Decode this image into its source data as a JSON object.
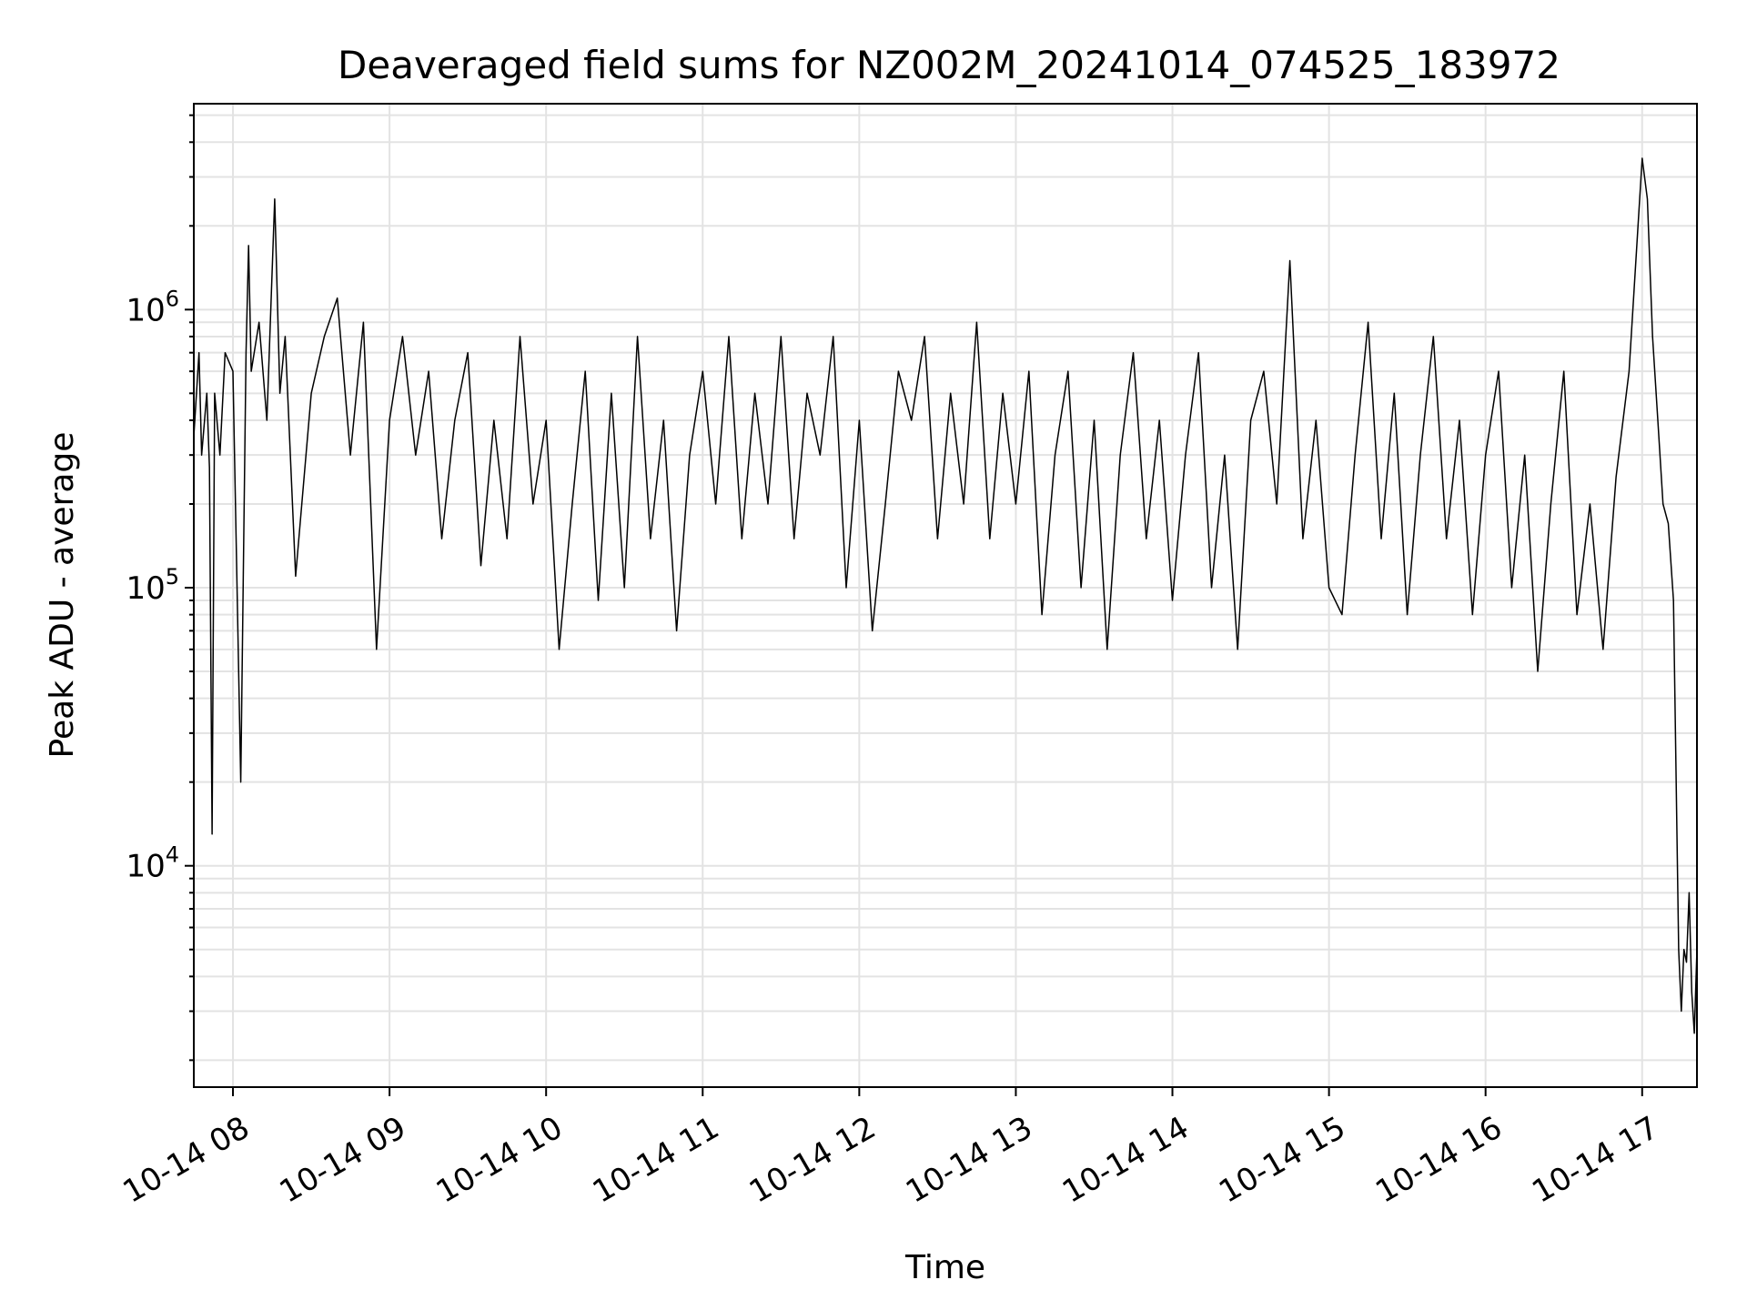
{
  "chart_data": {
    "type": "line",
    "title": "Deaveraged field sums for NZ002M_20241014_074525_183972",
    "xlabel": "Time",
    "ylabel": "Peak ADU - average",
    "yscale": "log",
    "ylim": [
      1600,
      5500000
    ],
    "xlim": [
      "2024-10-14 07:45",
      "2024-10-14 17:21"
    ],
    "grid": true,
    "line_color": "#000000",
    "x_ticks": [
      "10-14 08",
      "10-14 09",
      "10-14 10",
      "10-14 11",
      "10-14 12",
      "10-14 13",
      "10-14 14",
      "10-14 15",
      "10-14 16",
      "10-14 17"
    ],
    "y_ticks": [
      {
        "base": "10",
        "exp": "4",
        "value": 10000
      },
      {
        "base": "10",
        "exp": "5",
        "value": 100000
      },
      {
        "base": "10",
        "exp": "6",
        "value": 1000000
      }
    ],
    "series": [
      {
        "x": [
          "2024-10-14 07:45",
          "2024-10-14 07:47",
          "2024-10-14 07:48",
          "2024-10-14 07:50",
          "2024-10-14 07:51",
          "2024-10-14 07:52",
          "2024-10-14 07:53",
          "2024-10-14 07:55",
          "2024-10-14 07:57",
          "2024-10-14 08:00",
          "2024-10-14 08:03",
          "2024-10-14 08:05",
          "2024-10-14 08:06",
          "2024-10-14 08:07",
          "2024-10-14 08:10",
          "2024-10-14 08:13",
          "2024-10-14 08:16",
          "2024-10-14 08:18",
          "2024-10-14 08:20",
          "2024-10-14 08:24",
          "2024-10-14 08:30",
          "2024-10-14 08:35",
          "2024-10-14 08:40",
          "2024-10-14 08:45",
          "2024-10-14 08:50",
          "2024-10-14 08:55",
          "2024-10-14 09:00",
          "2024-10-14 09:05",
          "2024-10-14 09:10",
          "2024-10-14 09:15",
          "2024-10-14 09:20",
          "2024-10-14 09:25",
          "2024-10-14 09:30",
          "2024-10-14 09:35",
          "2024-10-14 09:40",
          "2024-10-14 09:45",
          "2024-10-14 09:50",
          "2024-10-14 09:55",
          "2024-10-14 10:00",
          "2024-10-14 10:05",
          "2024-10-14 10:10",
          "2024-10-14 10:15",
          "2024-10-14 10:20",
          "2024-10-14 10:25",
          "2024-10-14 10:30",
          "2024-10-14 10:35",
          "2024-10-14 10:40",
          "2024-10-14 10:45",
          "2024-10-14 10:50",
          "2024-10-14 10:55",
          "2024-10-14 11:00",
          "2024-10-14 11:05",
          "2024-10-14 11:10",
          "2024-10-14 11:15",
          "2024-10-14 11:20",
          "2024-10-14 11:25",
          "2024-10-14 11:30",
          "2024-10-14 11:35",
          "2024-10-14 11:40",
          "2024-10-14 11:45",
          "2024-10-14 11:50",
          "2024-10-14 11:55",
          "2024-10-14 12:00",
          "2024-10-14 12:05",
          "2024-10-14 12:10",
          "2024-10-14 12:15",
          "2024-10-14 12:20",
          "2024-10-14 12:25",
          "2024-10-14 12:30",
          "2024-10-14 12:35",
          "2024-10-14 12:40",
          "2024-10-14 12:45",
          "2024-10-14 12:50",
          "2024-10-14 12:55",
          "2024-10-14 13:00",
          "2024-10-14 13:05",
          "2024-10-14 13:10",
          "2024-10-14 13:15",
          "2024-10-14 13:20",
          "2024-10-14 13:25",
          "2024-10-14 13:30",
          "2024-10-14 13:35",
          "2024-10-14 13:40",
          "2024-10-14 13:45",
          "2024-10-14 13:50",
          "2024-10-14 13:55",
          "2024-10-14 14:00",
          "2024-10-14 14:05",
          "2024-10-14 14:10",
          "2024-10-14 14:15",
          "2024-10-14 14:20",
          "2024-10-14 14:25",
          "2024-10-14 14:30",
          "2024-10-14 14:35",
          "2024-10-14 14:40",
          "2024-10-14 14:45",
          "2024-10-14 14:50",
          "2024-10-14 14:55",
          "2024-10-14 15:00",
          "2024-10-14 15:05",
          "2024-10-14 15:10",
          "2024-10-14 15:15",
          "2024-10-14 15:20",
          "2024-10-14 15:25",
          "2024-10-14 15:30",
          "2024-10-14 15:35",
          "2024-10-14 15:40",
          "2024-10-14 15:45",
          "2024-10-14 15:50",
          "2024-10-14 15:55",
          "2024-10-14 16:00",
          "2024-10-14 16:05",
          "2024-10-14 16:10",
          "2024-10-14 16:15",
          "2024-10-14 16:20",
          "2024-10-14 16:25",
          "2024-10-14 16:30",
          "2024-10-14 16:35",
          "2024-10-14 16:40",
          "2024-10-14 16:45",
          "2024-10-14 16:50",
          "2024-10-14 16:55",
          "2024-10-14 17:00",
          "2024-10-14 17:02",
          "2024-10-14 17:04",
          "2024-10-14 17:06",
          "2024-10-14 17:08",
          "2024-10-14 17:10",
          "2024-10-14 17:12",
          "2024-10-14 17:14",
          "2024-10-14 17:15",
          "2024-10-14 17:16",
          "2024-10-14 17:17",
          "2024-10-14 17:18",
          "2024-10-14 17:19",
          "2024-10-14 17:20",
          "2024-10-14 17:21"
        ],
        "y": [
          350000,
          700000,
          300000,
          500000,
          270000,
          13000,
          500000,
          300000,
          700000,
          600000,
          20000,
          700000,
          1700000,
          600000,
          900000,
          400000,
          2500000,
          500000,
          800000,
          110000,
          500000,
          800000,
          1100000,
          300000,
          900000,
          60000,
          400000,
          800000,
          300000,
          600000,
          150000,
          400000,
          700000,
          120000,
          400000,
          150000,
          800000,
          200000,
          400000,
          60000,
          200000,
          600000,
          90000,
          500000,
          100000,
          800000,
          150000,
          400000,
          70000,
          300000,
          600000,
          200000,
          800000,
          150000,
          500000,
          200000,
          800000,
          150000,
          500000,
          300000,
          800000,
          100000,
          400000,
          70000,
          200000,
          600000,
          400000,
          800000,
          150000,
          500000,
          200000,
          900000,
          150000,
          500000,
          200000,
          600000,
          80000,
          300000,
          600000,
          100000,
          400000,
          60000,
          300000,
          700000,
          150000,
          400000,
          90000,
          300000,
          700000,
          100000,
          300000,
          60000,
          400000,
          600000,
          200000,
          1500000,
          150000,
          400000,
          100000,
          80000,
          300000,
          900000,
          150000,
          500000,
          80000,
          300000,
          800000,
          150000,
          400000,
          80000,
          300000,
          600000,
          100000,
          300000,
          50000,
          200000,
          600000,
          80000,
          200000,
          60000,
          250000,
          600000,
          3500000,
          2500000,
          800000,
          400000,
          200000,
          170000,
          90000,
          5000,
          3000,
          5000,
          4500,
          8000,
          3500,
          2500,
          5000
        ]
      }
    ]
  }
}
